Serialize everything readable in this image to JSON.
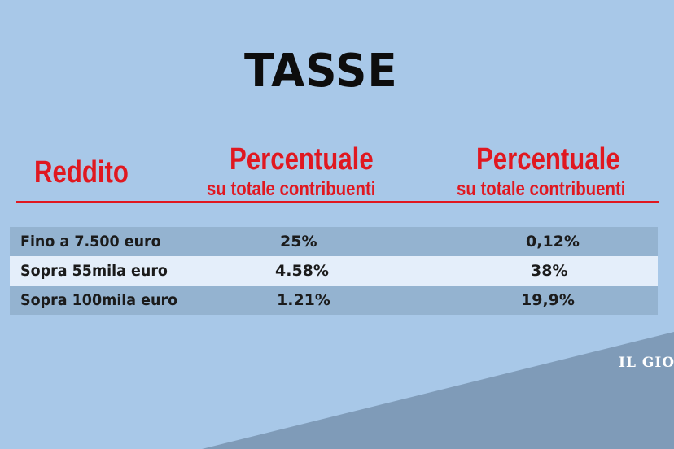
{
  "title": "TASSE",
  "colors": {
    "background": "#a8c8e8",
    "header_red": "#e01820",
    "row_dark": "#94b3d0",
    "row_light": "#e4eefa",
    "wedge": "#7f9bb8"
  },
  "columns": {
    "label": "Reddito",
    "col1": {
      "main": "Percentuale",
      "sub": "su totale contribuenti"
    },
    "col2": {
      "main": "Percentuale",
      "sub": "su totale contribuenti"
    }
  },
  "rows": [
    {
      "label": "Fino a 7.500 euro",
      "v1": "25%",
      "v2": "0,12%"
    },
    {
      "label": "Sopra 55mila euro",
      "v1": "4.58%",
      "v2": "38%"
    },
    {
      "label": "Sopra 100mila euro",
      "v1": "1.21%",
      "v2": "19,9%"
    }
  ],
  "watermark": "IL GIO"
}
